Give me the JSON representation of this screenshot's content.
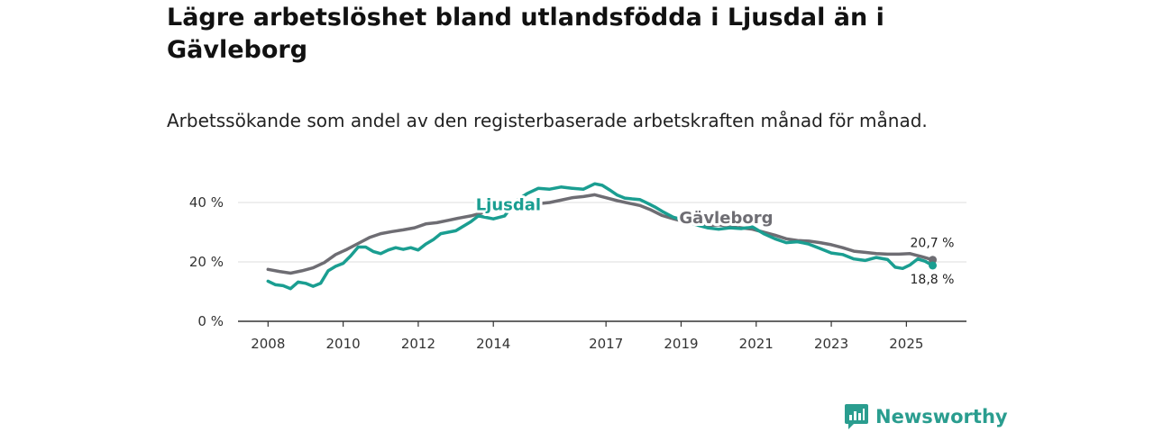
{
  "header": {
    "title": "Lägre arbetslöshet bland utlandsfödda i Ljusdal än i Gävleborg",
    "subtitle": "Arbetssökande som andel av den registerbaserade arbetskraften månad för månad."
  },
  "logo": {
    "text": "Newsworthy",
    "icon": "bar-chart-speech-bubble-icon",
    "color": "#2a9d8f"
  },
  "colors": {
    "ljusdal": "#1a9e91",
    "gavleborg": "#6e6d73",
    "grid": "#dddddd",
    "axis": "#333333"
  },
  "chart_data": {
    "type": "line",
    "title": "Lägre arbetslöshet bland utlandsfödda i Ljusdal än i Gävleborg",
    "subtitle": "Arbetssökande som andel av den registerbaserade arbetskraften månad för månad.",
    "xlabel": "",
    "ylabel": "",
    "ylim": [
      0,
      50
    ],
    "xlim": [
      2007.2,
      2026.6
    ],
    "y_ticks": [
      {
        "value": 0,
        "label": "0 %"
      },
      {
        "value": 20,
        "label": "20 %"
      },
      {
        "value": 40,
        "label": "40 %"
      }
    ],
    "x_ticks": [
      {
        "value": 2008,
        "label": "2008"
      },
      {
        "value": 2010,
        "label": "2010"
      },
      {
        "value": 2012,
        "label": "2012"
      },
      {
        "value": 2014,
        "label": "2014"
      },
      {
        "value": 2017,
        "label": "2017"
      },
      {
        "value": 2019,
        "label": "2019"
      },
      {
        "value": 2021,
        "label": "2021"
      },
      {
        "value": 2023,
        "label": "2023"
      },
      {
        "value": 2025,
        "label": "2025"
      }
    ],
    "grid": true,
    "series": [
      {
        "name": "Gävleborg",
        "key": "gavleborg",
        "points": [
          [
            2008.0,
            17.5
          ],
          [
            2008.3,
            16.8
          ],
          [
            2008.6,
            16.2
          ],
          [
            2008.9,
            17.0
          ],
          [
            2009.2,
            18.0
          ],
          [
            2009.5,
            19.8
          ],
          [
            2009.8,
            22.5
          ],
          [
            2010.1,
            24.2
          ],
          [
            2010.4,
            26.2
          ],
          [
            2010.7,
            28.2
          ],
          [
            2011.0,
            29.5
          ],
          [
            2011.3,
            30.2
          ],
          [
            2011.6,
            30.8
          ],
          [
            2011.9,
            31.5
          ],
          [
            2012.2,
            32.8
          ],
          [
            2012.5,
            33.2
          ],
          [
            2012.8,
            34.0
          ],
          [
            2013.1,
            34.8
          ],
          [
            2013.4,
            35.5
          ],
          [
            2013.7,
            36.5
          ],
          [
            2014.0,
            37.5
          ],
          [
            2014.3,
            38.0
          ],
          [
            2014.6,
            38.8
          ],
          [
            2014.9,
            39.2
          ],
          [
            2015.2,
            39.6
          ],
          [
            2015.5,
            40.0
          ],
          [
            2015.8,
            40.8
          ],
          [
            2016.1,
            41.6
          ],
          [
            2016.4,
            42.0
          ],
          [
            2016.7,
            42.6
          ],
          [
            2017.0,
            41.6
          ],
          [
            2017.3,
            40.6
          ],
          [
            2017.6,
            39.8
          ],
          [
            2017.9,
            39.0
          ],
          [
            2018.2,
            37.5
          ],
          [
            2018.5,
            35.6
          ],
          [
            2018.8,
            34.5
          ],
          [
            2019.1,
            33.5
          ],
          [
            2019.4,
            32.8
          ],
          [
            2019.7,
            32.2
          ],
          [
            2020.0,
            32.5
          ],
          [
            2020.3,
            32.0
          ],
          [
            2020.6,
            31.5
          ],
          [
            2020.9,
            31.0
          ],
          [
            2021.2,
            30.0
          ],
          [
            2021.5,
            29.0
          ],
          [
            2021.8,
            27.8
          ],
          [
            2022.1,
            27.2
          ],
          [
            2022.4,
            27.0
          ],
          [
            2022.7,
            26.5
          ],
          [
            2023.0,
            25.8
          ],
          [
            2023.3,
            24.8
          ],
          [
            2023.6,
            23.6
          ],
          [
            2023.9,
            23.2
          ],
          [
            2024.2,
            22.8
          ],
          [
            2024.5,
            22.6
          ],
          [
            2024.8,
            22.6
          ],
          [
            2025.1,
            22.8
          ],
          [
            2025.4,
            21.8
          ],
          [
            2025.7,
            20.7
          ]
        ]
      },
      {
        "name": "Ljusdal",
        "key": "ljusdal",
        "points": [
          [
            2008.0,
            13.5
          ],
          [
            2008.2,
            12.3
          ],
          [
            2008.4,
            12.0
          ],
          [
            2008.6,
            11.0
          ],
          [
            2008.8,
            13.2
          ],
          [
            2009.0,
            12.8
          ],
          [
            2009.2,
            11.8
          ],
          [
            2009.4,
            12.8
          ],
          [
            2009.6,
            17.0
          ],
          [
            2009.8,
            18.5
          ],
          [
            2010.0,
            19.5
          ],
          [
            2010.2,
            22.0
          ],
          [
            2010.4,
            25.0
          ],
          [
            2010.6,
            25.0
          ],
          [
            2010.8,
            23.5
          ],
          [
            2011.0,
            22.8
          ],
          [
            2011.2,
            24.0
          ],
          [
            2011.4,
            24.8
          ],
          [
            2011.6,
            24.2
          ],
          [
            2011.8,
            24.8
          ],
          [
            2012.0,
            24.0
          ],
          [
            2012.2,
            26.0
          ],
          [
            2012.4,
            27.5
          ],
          [
            2012.6,
            29.5
          ],
          [
            2012.8,
            30.0
          ],
          [
            2013.0,
            30.5
          ],
          [
            2013.2,
            32.0
          ],
          [
            2013.4,
            33.5
          ],
          [
            2013.6,
            35.5
          ],
          [
            2013.8,
            35.0
          ],
          [
            2014.0,
            34.5
          ],
          [
            2014.3,
            35.5
          ],
          [
            2014.6,
            40.5
          ],
          [
            2014.9,
            43.0
          ],
          [
            2015.2,
            44.8
          ],
          [
            2015.5,
            44.5
          ],
          [
            2015.8,
            45.2
          ],
          [
            2016.1,
            44.8
          ],
          [
            2016.4,
            44.5
          ],
          [
            2016.7,
            46.3
          ],
          [
            2016.9,
            45.8
          ],
          [
            2017.1,
            44.2
          ],
          [
            2017.3,
            42.5
          ],
          [
            2017.5,
            41.5
          ],
          [
            2017.7,
            41.2
          ],
          [
            2017.9,
            41.0
          ],
          [
            2018.1,
            39.8
          ],
          [
            2018.3,
            38.5
          ],
          [
            2018.5,
            37.0
          ],
          [
            2018.8,
            35.0
          ],
          [
            2019.1,
            34.0
          ],
          [
            2019.4,
            32.5
          ],
          [
            2019.7,
            31.5
          ],
          [
            2020.0,
            31.0
          ],
          [
            2020.3,
            31.5
          ],
          [
            2020.6,
            31.2
          ],
          [
            2020.9,
            31.8
          ],
          [
            2021.2,
            29.5
          ],
          [
            2021.5,
            27.8
          ],
          [
            2021.8,
            26.5
          ],
          [
            2022.1,
            26.8
          ],
          [
            2022.4,
            26.0
          ],
          [
            2022.7,
            24.5
          ],
          [
            2023.0,
            23.0
          ],
          [
            2023.3,
            22.5
          ],
          [
            2023.6,
            21.0
          ],
          [
            2023.9,
            20.5
          ],
          [
            2024.2,
            21.5
          ],
          [
            2024.5,
            20.8
          ],
          [
            2024.7,
            18.2
          ],
          [
            2024.9,
            17.8
          ],
          [
            2025.1,
            19.0
          ],
          [
            2025.3,
            21.0
          ],
          [
            2025.5,
            20.2
          ],
          [
            2025.7,
            18.8
          ]
        ]
      }
    ],
    "annotations": [
      {
        "text": "Ljusdal",
        "series": "ljusdal",
        "x": 2014.4,
        "y": 37.5
      },
      {
        "text": "Gävleborg",
        "series": "gavleborg",
        "x": 2020.2,
        "y": 33.0
      }
    ],
    "end_labels": [
      {
        "series": "gavleborg",
        "text": "20,7 %"
      },
      {
        "series": "ljusdal",
        "text": "18,8 %"
      }
    ]
  }
}
